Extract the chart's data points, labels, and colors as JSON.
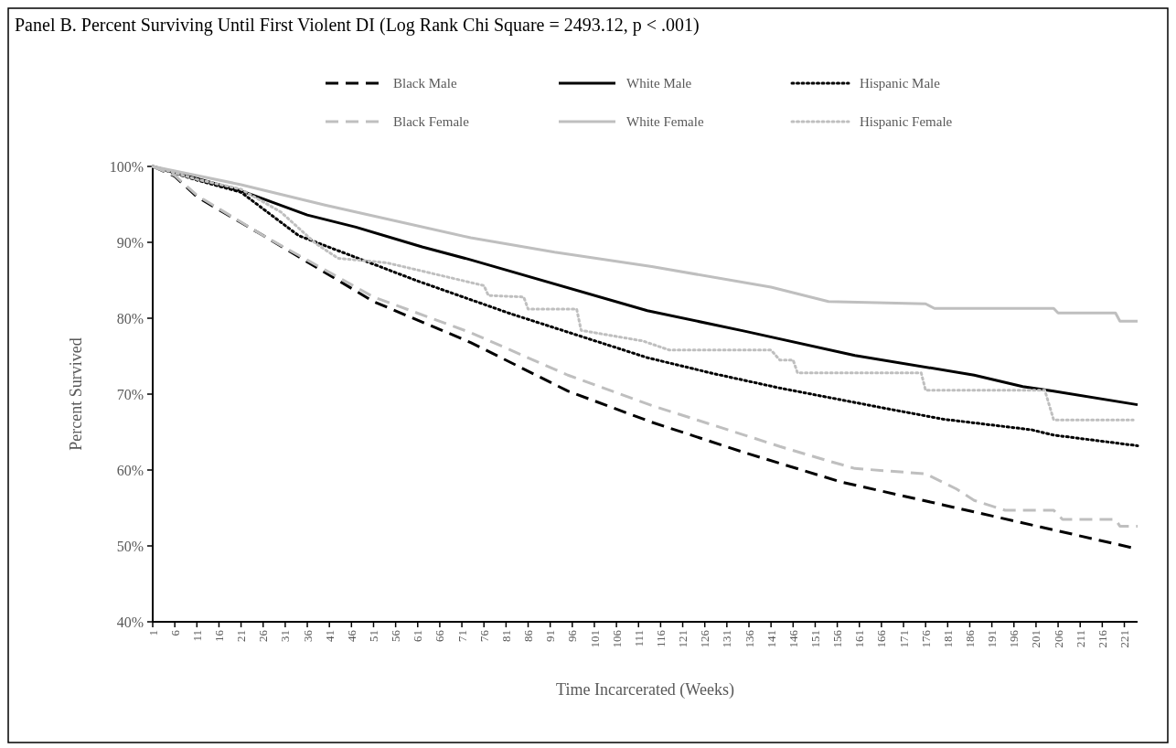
{
  "chart_data": {
    "type": "line",
    "title": "Panel B. Percent Surviving Until First Violent DI (Log Rank Chi Square = 2493.12, p < .001)",
    "xlabel": "Time Incarcerated (Weeks)",
    "ylabel": "Percent Survived",
    "xlim": [
      1,
      224
    ],
    "xticks": [
      1,
      6,
      11,
      16,
      21,
      26,
      31,
      36,
      41,
      46,
      51,
      56,
      61,
      66,
      71,
      76,
      81,
      86,
      91,
      96,
      101,
      106,
      111,
      116,
      121,
      126,
      131,
      136,
      141,
      146,
      151,
      156,
      161,
      166,
      171,
      176,
      181,
      186,
      191,
      196,
      201,
      206,
      211,
      216,
      221
    ],
    "ylim": [
      40,
      100
    ],
    "yticks": [
      {
        "value": 40,
        "label": "40%"
      },
      {
        "value": 50,
        "label": "50%"
      },
      {
        "value": 60,
        "label": "60%"
      },
      {
        "value": 70,
        "label": "70%"
      },
      {
        "value": 80,
        "label": "80%"
      },
      {
        "value": 90,
        "label": "90%"
      },
      {
        "value": 100,
        "label": "100%"
      }
    ],
    "grid": false,
    "legend": "top",
    "marker": "none",
    "series": [
      {
        "name": "Black Male",
        "color": "#000000",
        "line_style": "dashed",
        "x": [
          1,
          6,
          11,
          26,
          51,
          73,
          95,
          114,
          135,
          157,
          180,
          202,
          224
        ],
        "values": [
          100,
          98.7,
          96,
          90.9,
          82.2,
          76.8,
          70.4,
          66.3,
          62.3,
          58.4,
          55.4,
          52.5,
          49.6
        ]
      },
      {
        "name": "White Male",
        "color": "#000000",
        "line_style": "solid",
        "x": [
          1,
          11,
          21,
          36,
          47,
          62,
          73,
          113,
          135,
          160,
          187,
          198,
          205,
          224
        ],
        "values": [
          100,
          98.4,
          96.8,
          93.6,
          92.0,
          89.4,
          87.7,
          81.0,
          78.3,
          75.1,
          72.5,
          71.0,
          70.4,
          68.6
        ]
      },
      {
        "name": "Hispanic Male",
        "color": "#000000",
        "line_style": "dotted",
        "x": [
          1,
          11,
          21,
          34,
          61,
          82,
          113,
          128,
          143,
          168,
          180,
          200,
          205,
          224
        ],
        "values": [
          100,
          98.2,
          96.6,
          90.9,
          84.9,
          80.6,
          74.8,
          72.7,
          70.8,
          68.0,
          66.7,
          65.3,
          64.6,
          63.2
        ]
      },
      {
        "name": "Black Female",
        "color": "#bfbfbf",
        "line_style": "dashed",
        "x": [
          1,
          6,
          11,
          26,
          51,
          73,
          95,
          114,
          135,
          143,
          154,
          160,
          176,
          183,
          187,
          194,
          205,
          207,
          219,
          220,
          224
        ],
        "values": [
          100,
          98.8,
          96.2,
          90.9,
          82.8,
          78.1,
          72.5,
          68.5,
          64.6,
          63.1,
          61.2,
          60.2,
          59.5,
          57.5,
          56.0,
          54.7,
          54.7,
          53.5,
          53.5,
          52.6,
          52.6
        ]
      },
      {
        "name": "White Female",
        "color": "#bfbfbf",
        "line_style": "solid",
        "x": [
          1,
          21,
          40,
          73,
          92,
          114,
          141,
          154,
          176,
          178,
          205,
          206,
          219,
          220,
          224
        ],
        "values": [
          100,
          97.6,
          94.9,
          90.6,
          88.7,
          86.8,
          84.1,
          82.2,
          81.9,
          81.3,
          81.3,
          80.7,
          80.7,
          79.6,
          79.6
        ]
      },
      {
        "name": "Hispanic Female",
        "color": "#bfbfbf",
        "line_style": "dotted",
        "x": [
          1,
          11,
          21,
          30,
          38,
          43,
          54,
          76,
          77,
          85,
          86,
          97,
          98,
          112,
          118,
          141,
          143,
          146,
          147,
          175,
          176,
          203,
          205,
          223
        ],
        "values": [
          100,
          98.3,
          97,
          94,
          89.8,
          87.9,
          87.3,
          84.3,
          83.0,
          82.8,
          81.2,
          81.2,
          78.4,
          77.0,
          75.8,
          75.8,
          74.5,
          74.5,
          72.8,
          72.8,
          70.5,
          70.5,
          66.6,
          66.6
        ]
      }
    ]
  }
}
